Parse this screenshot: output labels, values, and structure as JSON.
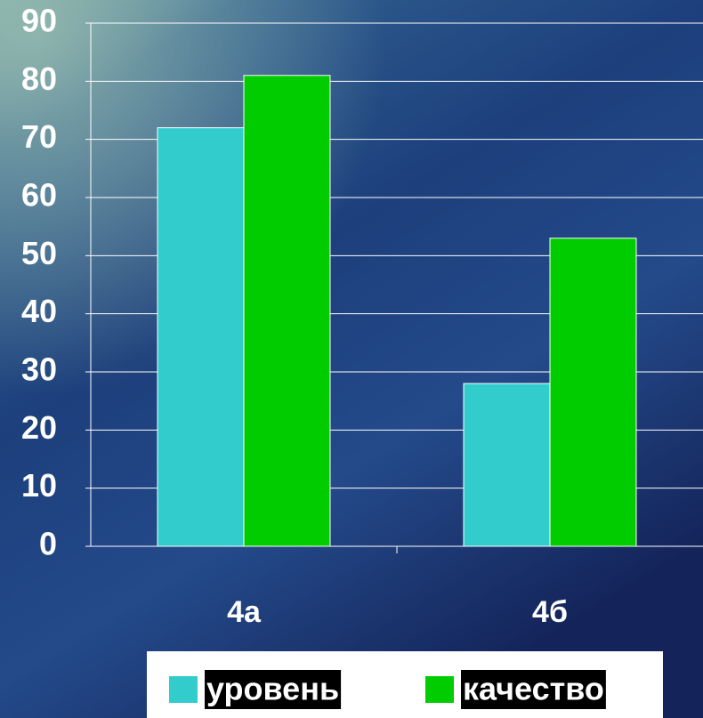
{
  "chart_data": {
    "type": "bar",
    "categories": [
      "4а",
      "4б"
    ],
    "series": [
      {
        "name": "уровень",
        "color": "#33cccc",
        "values": [
          72,
          28
        ]
      },
      {
        "name": "качество",
        "color": "#00cc00",
        "values": [
          81,
          53
        ]
      }
    ],
    "ylim": [
      0,
      90
    ],
    "yticks": [
      0,
      10,
      20,
      30,
      40,
      50,
      60,
      70,
      80,
      90
    ],
    "grid": true,
    "legend": "bottom"
  }
}
